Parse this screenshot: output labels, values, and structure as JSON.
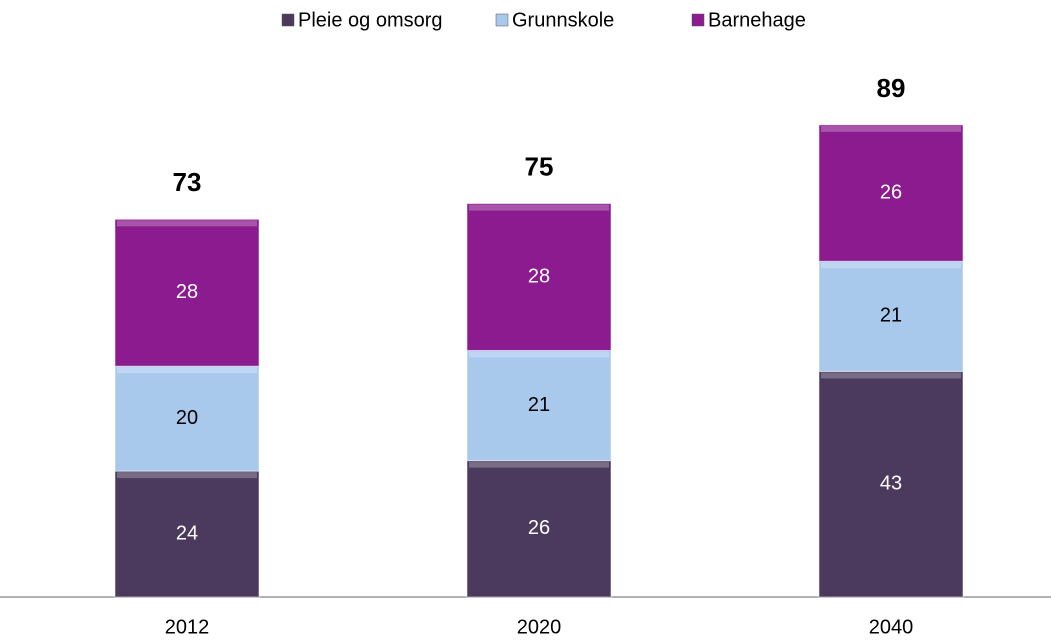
{
  "chart_data": {
    "type": "stacked_bar",
    "categories": [
      "2012",
      "2020",
      "2040"
    ],
    "series": [
      {
        "name": "Pleie og omsorg",
        "color": "#4b3a5e",
        "values": [
          24,
          26,
          43
        ]
      },
      {
        "name": "Grunnskole",
        "color": "#a9c9ec",
        "values": [
          20,
          21,
          21
        ]
      },
      {
        "name": "Barnehage",
        "color": "#8b1b8f",
        "values": [
          28,
          28,
          26
        ]
      }
    ],
    "totals": [
      73,
      75,
      89
    ],
    "ylim": [
      0,
      110
    ],
    "legend": "top"
  }
}
